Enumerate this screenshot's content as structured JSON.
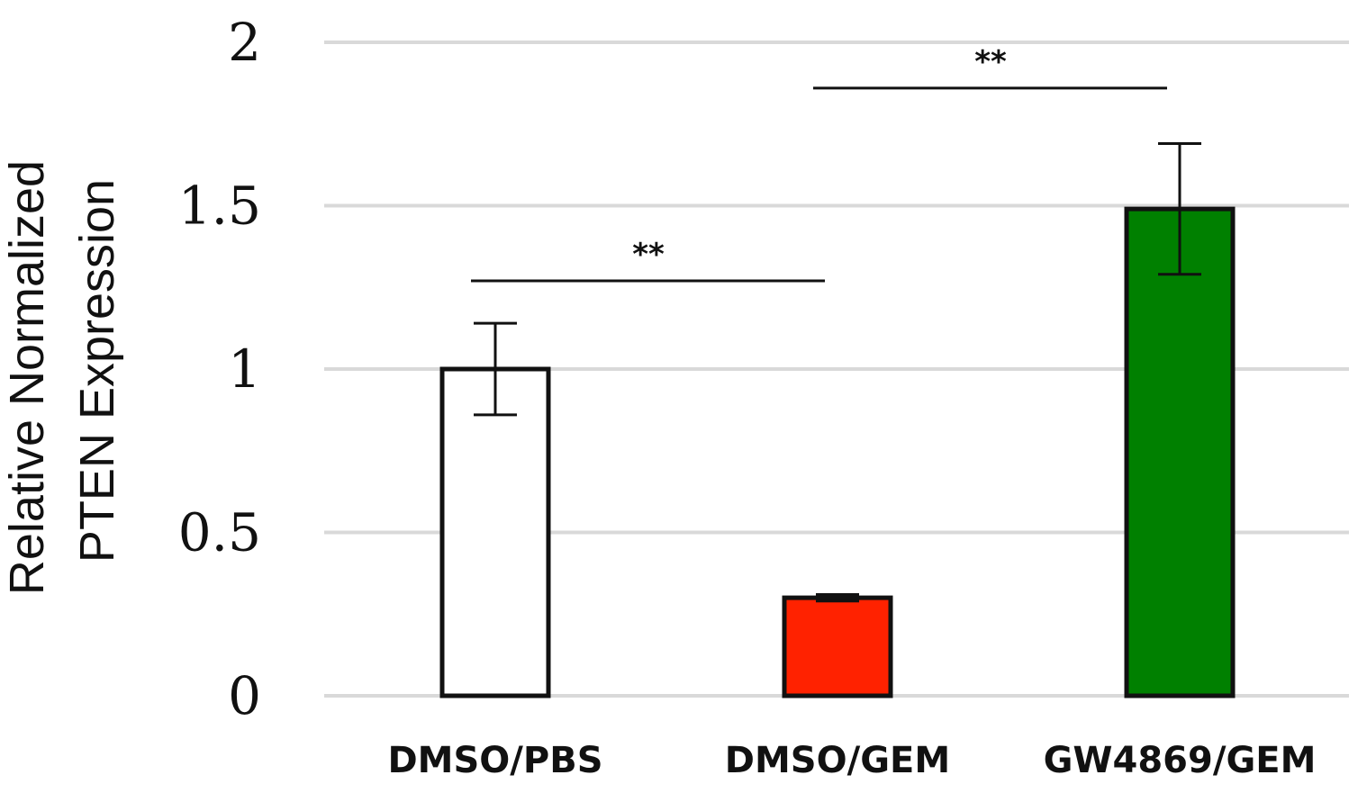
{
  "chart_data": {
    "type": "bar",
    "categories": [
      "DMSO/PBS",
      "DMSO/GEM",
      "GW4869/GEM"
    ],
    "values": [
      1.0,
      0.3,
      1.49
    ],
    "error": [
      0.14,
      0.01,
      0.2
    ],
    "bar_colors": [
      "#ffffff",
      "#ff2200",
      "#008000"
    ],
    "bar_edge_color": "#111111",
    "title": "",
    "xlabel": "",
    "ylabel_lines": [
      "Relative Normalized",
      "PTEN Expression"
    ],
    "ylim": [
      0,
      2
    ],
    "yticks": [
      0,
      0.5,
      1,
      1.5,
      2
    ],
    "ytick_labels": [
      "0",
      "0.5",
      "1",
      "1.5",
      "2"
    ],
    "grid": true,
    "grid_color": "#d9d9d9",
    "significance": [
      {
        "from": "DMSO/PBS",
        "to": "DMSO/GEM",
        "label": "**",
        "y": 1.27
      },
      {
        "from": "DMSO/GEM",
        "to": "GW4869/GEM",
        "label": "**",
        "y": 1.86
      }
    ]
  }
}
